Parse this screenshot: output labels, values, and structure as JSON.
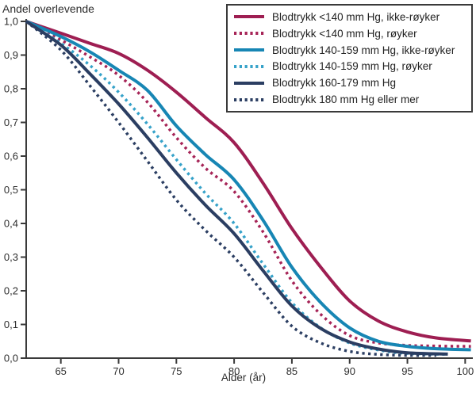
{
  "chart_data": {
    "type": "line",
    "title": "",
    "ylabel": "Andel overlevende",
    "xlabel": "Alder (år)",
    "xlim": [
      62,
      100.8
    ],
    "ylim": [
      0,
      1
    ],
    "xticks": [
      65,
      70,
      75,
      80,
      85,
      90,
      95,
      100
    ],
    "yticks": [
      0,
      0.1,
      0.2,
      0.3,
      0.4,
      0.5,
      0.6,
      0.7,
      0.8,
      0.9,
      1.0
    ],
    "ytick_labels": [
      "0,0",
      "0,1",
      "0,2",
      "0,3",
      "0,4",
      "0,5",
      "0,6",
      "0,7",
      "0,8",
      "0,9",
      "1,0"
    ],
    "grid": false,
    "legend_position": "top-right",
    "axis_color": "#3a3a3a",
    "text_color": "#2d2d2d",
    "series": [
      {
        "name": "Blodtrykk <140 mm Hg, ikke-røyker",
        "color": "#9e1e52",
        "style": "solid",
        "x": [
          62,
          65,
          67.5,
          70,
          72.5,
          75,
          77.5,
          80,
          82.5,
          85,
          87.5,
          90,
          92.5,
          95,
          97.5,
          100.5
        ],
        "values": [
          1.0,
          0.965,
          0.935,
          0.905,
          0.855,
          0.79,
          0.715,
          0.64,
          0.52,
          0.385,
          0.27,
          0.17,
          0.11,
          0.078,
          0.06,
          0.051
        ]
      },
      {
        "name": "Blodtrykk <140 mm Hg, røyker",
        "color": "#a62457",
        "style": "dotted",
        "x": [
          62,
          65,
          67.5,
          70,
          72.5,
          75,
          77.5,
          80,
          82.5,
          85,
          87.5,
          90,
          92.5,
          95,
          97.5,
          100.5
        ],
        "values": [
          1.0,
          0.945,
          0.895,
          0.84,
          0.76,
          0.655,
          0.565,
          0.495,
          0.375,
          0.23,
          0.13,
          0.067,
          0.045,
          0.038,
          0.036,
          0.035
        ]
      },
      {
        "name": "Blodtrykk 140-159 mm Hg, ikke-røyker",
        "color": "#1786b4",
        "style": "solid",
        "x": [
          62,
          65,
          67.5,
          70,
          72.5,
          75,
          77.5,
          80,
          82.5,
          85,
          87.5,
          90,
          92.5,
          95,
          97.5,
          100.5
        ],
        "values": [
          1.0,
          0.955,
          0.91,
          0.855,
          0.795,
          0.69,
          0.605,
          0.53,
          0.41,
          0.27,
          0.165,
          0.09,
          0.05,
          0.035,
          0.028,
          0.025
        ]
      },
      {
        "name": "Blodtrykk 140-159 mm Hg, røyker",
        "color": "#36a2c9",
        "style": "dotted",
        "x": [
          62,
          65,
          67.5,
          70,
          72.5,
          75,
          77.5,
          80,
          82.5,
          85,
          87.5,
          90,
          92.5,
          95,
          98.5
        ],
        "values": [
          1.0,
          0.935,
          0.87,
          0.79,
          0.695,
          0.59,
          0.49,
          0.4,
          0.28,
          0.165,
          0.09,
          0.045,
          0.024,
          0.014,
          0.011
        ]
      },
      {
        "name": "Blodtrykk 160-179 mm Hg",
        "color": "#2b3e62",
        "style": "solid",
        "x": [
          62,
          65,
          67.5,
          70,
          72.5,
          75,
          77.5,
          80,
          82.5,
          85,
          87.5,
          90,
          92.5,
          95,
          98.5
        ],
        "values": [
          1.0,
          0.93,
          0.845,
          0.755,
          0.655,
          0.55,
          0.455,
          0.37,
          0.26,
          0.155,
          0.088,
          0.048,
          0.027,
          0.016,
          0.012
        ]
      },
      {
        "name": "Blodtrykk 180 mm Hg eller mer",
        "color": "#2b3e62",
        "style": "dotted",
        "x": [
          62,
          65,
          67.5,
          70,
          72.5,
          75,
          77.5,
          80,
          82.5,
          85,
          87.5,
          90,
          92.5,
          95,
          97.5
        ],
        "values": [
          1.0,
          0.915,
          0.81,
          0.7,
          0.585,
          0.47,
          0.38,
          0.3,
          0.195,
          0.095,
          0.045,
          0.02,
          0.011,
          0.008,
          0.008
        ]
      }
    ]
  }
}
